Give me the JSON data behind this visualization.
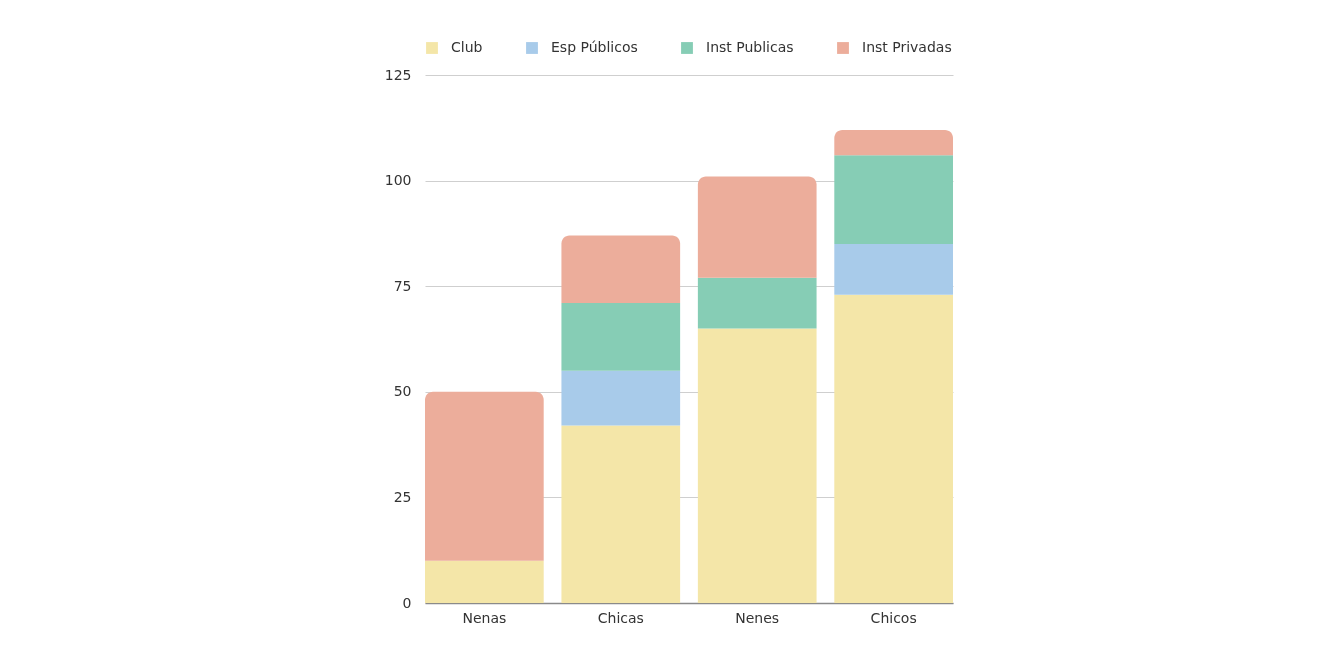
{
  "chart_data": {
    "type": "bar",
    "categories": [
      "Nenas",
      "Chicas",
      "Nenes",
      "Chicos"
    ],
    "stacked": true,
    "series": [
      {
        "name": "Club",
        "color": "#f4e6a8",
        "values": [
          10,
          42,
          65,
          73
        ]
      },
      {
        "name": "Esp Públicos",
        "color": "#a8cbea",
        "values": [
          null,
          13,
          null,
          12
        ]
      },
      {
        "name": "Inst Publicas",
        "color": "#86cdb5",
        "values": [
          null,
          16,
          12,
          21
        ]
      },
      {
        "name": "Inst Privadas",
        "color": "#ecad9b",
        "values": [
          40,
          16,
          24,
          6
        ]
      }
    ],
    "ylim": [
      0,
      125
    ],
    "yticks": [
      0,
      25,
      50,
      75,
      100,
      125
    ],
    "grid": "y",
    "legend": "top"
  }
}
